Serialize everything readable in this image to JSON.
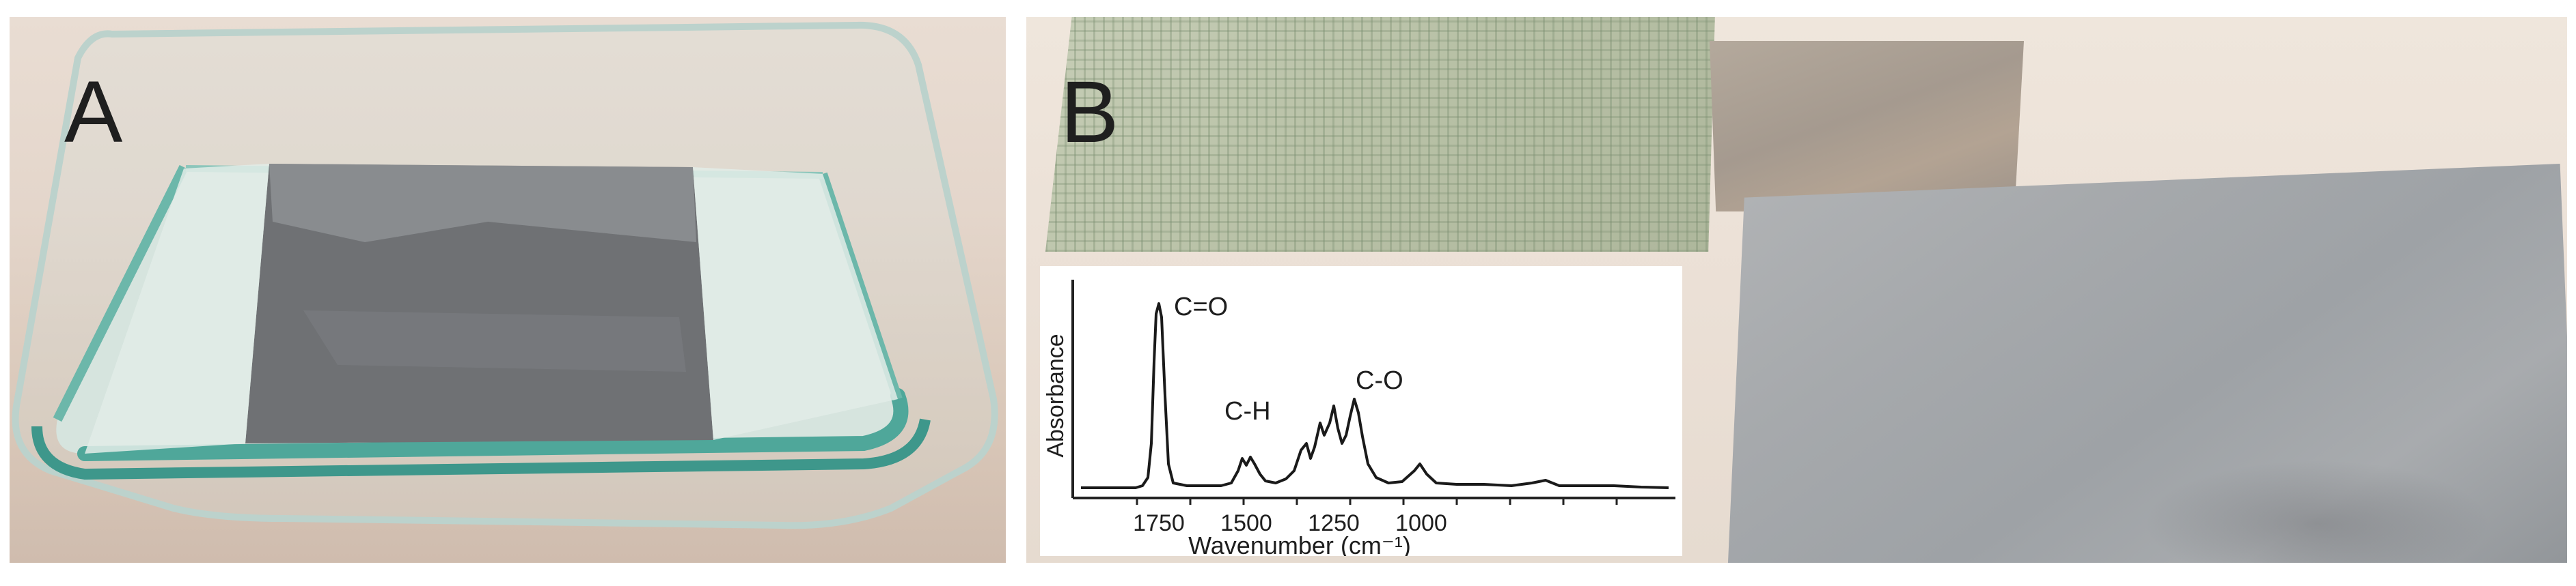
{
  "panels": {
    "a": {
      "label": "A"
    },
    "b": {
      "label": "B"
    }
  },
  "ftir": {
    "xlabel": "Wavenumber (cm⁻¹)",
    "ylabel": "Absorbance",
    "ticks": [
      "1750",
      "1500",
      "1250",
      "1000"
    ],
    "annotations": {
      "carbonyl": "C=O",
      "ch": "C-H",
      "co": "C-O"
    }
  },
  "colors": {
    "dish_glass": "#6fb9ad",
    "sheet_gray": "#6e7073",
    "mesh": "#b8c1a6",
    "plate": "#a6a9ac"
  }
}
